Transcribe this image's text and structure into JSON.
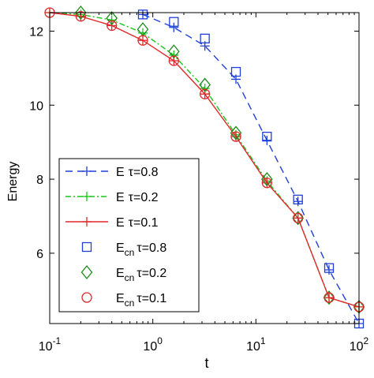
{
  "chart_data": {
    "type": "line",
    "xlabel": "t",
    "ylabel": "Energy",
    "xscale": "log",
    "xlim": [
      0.1,
      100
    ],
    "ylim": [
      4.1,
      12.5
    ],
    "grid": false,
    "legend_position": "bottom-left",
    "x_ticks": [
      {
        "value": 0.1,
        "base": "10",
        "exp": "-1"
      },
      {
        "value": 1,
        "base": "10",
        "exp": "0"
      },
      {
        "value": 10,
        "base": "10",
        "exp": "1"
      },
      {
        "value": 100,
        "base": "10",
        "exp": "2"
      }
    ],
    "y_ticks": [
      {
        "value": 6,
        "label": "6"
      },
      {
        "value": 8,
        "label": "8"
      },
      {
        "value": 10,
        "label": "10"
      },
      {
        "value": 12,
        "label": "12"
      }
    ],
    "x": [
      0.1,
      0.2,
      0.4,
      0.8,
      1.6,
      3.2,
      6.4,
      12.8,
      25.6,
      51.2,
      100
    ],
    "series": [
      {
        "name": "E τ=0.8",
        "label_main": "E",
        "label_sub": "",
        "label_tau": "τ=0.8",
        "color": "#1f3fd6",
        "dash": "9,6",
        "marker": "plus",
        "points": [
          [
            0.8,
            12.45
          ],
          [
            1.6,
            12.1
          ],
          [
            3.2,
            11.6
          ],
          [
            6.4,
            10.7
          ],
          [
            12.8,
            9.05
          ],
          [
            25.6,
            7.4
          ],
          [
            51.2,
            5.55
          ],
          [
            100,
            4.1
          ]
        ]
      },
      {
        "name": "E τ=0.2",
        "label_main": "E",
        "label_sub": "",
        "label_tau": "τ=0.2",
        "color": "#19c51b",
        "dash": "7,3,2,3",
        "marker": "plus",
        "points": [
          [
            0.1,
            12.5
          ],
          [
            0.2,
            12.45
          ],
          [
            0.4,
            12.3
          ],
          [
            0.8,
            11.95
          ],
          [
            1.6,
            11.35
          ],
          [
            3.2,
            10.45
          ],
          [
            6.4,
            9.2
          ],
          [
            12.8,
            7.95
          ],
          [
            25.6,
            6.95
          ],
          [
            51.2,
            4.8
          ],
          [
            100,
            4.55
          ]
        ]
      },
      {
        "name": "E τ=0.1",
        "label_main": "E",
        "label_sub": "",
        "label_tau": "τ=0.1",
        "color": "#e0282a",
        "dash": "",
        "marker": "plus",
        "points": [
          [
            0.1,
            12.5
          ],
          [
            0.2,
            12.4
          ],
          [
            0.4,
            12.15
          ],
          [
            0.8,
            11.75
          ],
          [
            1.6,
            11.2
          ],
          [
            3.2,
            10.3
          ],
          [
            6.4,
            9.15
          ],
          [
            12.8,
            7.9
          ],
          [
            25.6,
            6.95
          ],
          [
            51.2,
            4.8
          ],
          [
            100,
            4.55
          ]
        ]
      },
      {
        "name": "Ecn τ=0.8",
        "label_main": "E",
        "label_sub": "cn",
        "label_tau": "τ=0.8",
        "color": "#1f3fd6",
        "dash": "none",
        "marker": "square",
        "points": [
          [
            0.8,
            12.45
          ],
          [
            1.6,
            12.25
          ],
          [
            3.2,
            11.8
          ],
          [
            6.4,
            10.9
          ],
          [
            12.8,
            9.15
          ],
          [
            25.6,
            7.45
          ],
          [
            51.2,
            5.6
          ],
          [
            100,
            4.1
          ]
        ]
      },
      {
        "name": "Ecn τ=0.2",
        "label_main": "E",
        "label_sub": "cn",
        "label_tau": "τ=0.2",
        "color": "#1a8a1a",
        "dash": "none",
        "marker": "diamond",
        "points": [
          [
            0.2,
            12.5
          ],
          [
            0.4,
            12.35
          ],
          [
            0.8,
            12.05
          ],
          [
            1.6,
            11.45
          ],
          [
            3.2,
            10.55
          ],
          [
            6.4,
            9.25
          ],
          [
            12.8,
            8.0
          ],
          [
            25.6,
            6.95
          ],
          [
            51.2,
            4.8
          ],
          [
            100,
            4.55
          ]
        ]
      },
      {
        "name": "Ecn τ=0.1",
        "label_main": "E",
        "label_sub": "cn",
        "label_tau": "τ=0.1",
        "color": "#e0282a",
        "dash": "none",
        "marker": "circle",
        "points": [
          [
            0.1,
            12.5
          ],
          [
            0.2,
            12.4
          ],
          [
            0.4,
            12.15
          ],
          [
            0.8,
            11.75
          ],
          [
            1.6,
            11.2
          ],
          [
            3.2,
            10.3
          ],
          [
            6.4,
            9.15
          ],
          [
            12.8,
            7.9
          ],
          [
            25.6,
            6.95
          ],
          [
            51.2,
            4.8
          ],
          [
            100,
            4.55
          ]
        ]
      }
    ]
  }
}
